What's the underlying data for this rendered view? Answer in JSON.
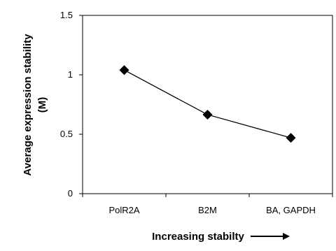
{
  "chart_data": {
    "type": "line",
    "categories": [
      "PolR2A",
      "B2M",
      "BA,  GAPDH"
    ],
    "series": [
      {
        "values": [
          1.04,
          0.665,
          0.47
        ]
      }
    ],
    "xlabel": "Increasing stabilty",
    "ylabel_line1": "Average expression stability",
    "ylabel_line2": "(M)",
    "ylim": [
      0,
      1.5
    ],
    "yticks": [
      "0",
      "0.5",
      "1",
      "1.5"
    ],
    "grid": false,
    "marker": "diamond",
    "line_color": "#000000"
  }
}
